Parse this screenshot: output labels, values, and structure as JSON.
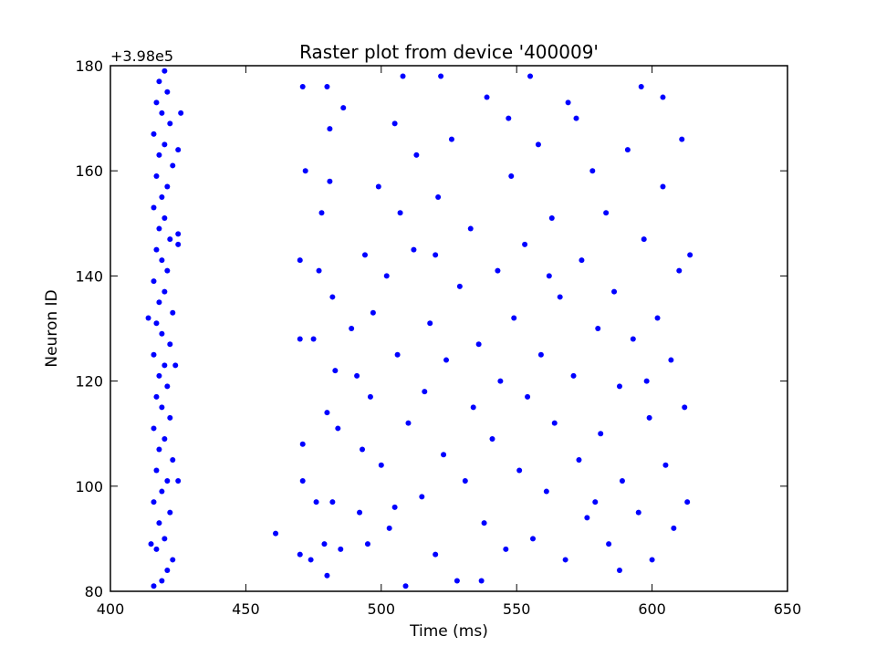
{
  "chart_data": {
    "type": "scatter",
    "title": "Raster plot from device '400009'",
    "xlabel": "Time (ms)",
    "ylabel": "Neuron ID",
    "xlim": [
      400,
      650
    ],
    "ylim": [
      80,
      180
    ],
    "x_ticks": [
      "400",
      "450",
      "500",
      "550",
      "600",
      "650"
    ],
    "y_ticks": [
      "80",
      "100",
      "120",
      "140",
      "160",
      "180"
    ],
    "y_offset_label": "+3.98e5",
    "grid": false,
    "legend": "none",
    "marker_color": "#0000ff",
    "series": [
      {
        "points": [
          [
            416,
            81
          ],
          [
            419,
            82
          ],
          [
            421,
            84
          ],
          [
            423,
            86
          ],
          [
            417,
            88
          ],
          [
            420,
            90
          ],
          [
            418,
            93
          ],
          [
            422,
            95
          ],
          [
            416,
            97
          ],
          [
            419,
            99
          ],
          [
            421,
            101
          ],
          [
            417,
            103
          ],
          [
            423,
            105
          ],
          [
            418,
            107
          ],
          [
            420,
            109
          ],
          [
            416,
            111
          ],
          [
            422,
            113
          ],
          [
            419,
            115
          ],
          [
            417,
            117
          ],
          [
            421,
            119
          ],
          [
            418,
            121
          ],
          [
            420,
            123
          ],
          [
            416,
            125
          ],
          [
            422,
            127
          ],
          [
            419,
            129
          ],
          [
            417,
            131
          ],
          [
            423,
            133
          ],
          [
            418,
            135
          ],
          [
            420,
            137
          ],
          [
            416,
            139
          ],
          [
            421,
            141
          ],
          [
            419,
            143
          ],
          [
            417,
            145
          ],
          [
            422,
            147
          ],
          [
            418,
            149
          ],
          [
            420,
            151
          ],
          [
            416,
            153
          ],
          [
            419,
            155
          ],
          [
            421,
            157
          ],
          [
            417,
            159
          ],
          [
            423,
            161
          ],
          [
            418,
            163
          ],
          [
            420,
            165
          ],
          [
            416,
            167
          ],
          [
            422,
            169
          ],
          [
            419,
            171
          ],
          [
            417,
            173
          ],
          [
            421,
            175
          ],
          [
            418,
            177
          ],
          [
            420,
            179
          ],
          [
            415,
            89
          ],
          [
            425,
            101
          ],
          [
            425,
            148
          ],
          [
            426,
            171
          ],
          [
            425,
            164
          ],
          [
            424,
            123
          ],
          [
            414,
            132
          ],
          [
            425,
            146
          ],
          [
            461,
            91
          ],
          [
            470,
            87
          ],
          [
            470,
            143
          ],
          [
            471,
            108
          ],
          [
            470,
            128
          ],
          [
            471,
            101
          ],
          [
            472,
            160
          ],
          [
            471,
            176
          ],
          [
            474,
            86
          ],
          [
            476,
            97
          ],
          [
            477,
            141
          ],
          [
            479,
            89
          ],
          [
            480,
            114
          ],
          [
            480,
            83
          ],
          [
            480,
            176
          ],
          [
            481,
            168
          ],
          [
            482,
            97
          ],
          [
            481,
            158
          ],
          [
            484,
            111
          ],
          [
            483,
            122
          ],
          [
            482,
            136
          ],
          [
            485,
            88
          ],
          [
            486,
            172
          ],
          [
            489,
            130
          ],
          [
            491,
            121
          ],
          [
            492,
            95
          ],
          [
            493,
            107
          ],
          [
            494,
            144
          ],
          [
            496,
            117
          ],
          [
            497,
            133
          ],
          [
            499,
            157
          ],
          [
            500,
            104
          ],
          [
            502,
            140
          ],
          [
            503,
            92
          ],
          [
            505,
            169
          ],
          [
            506,
            125
          ],
          [
            507,
            152
          ],
          [
            509,
            81
          ],
          [
            510,
            112
          ],
          [
            512,
            145
          ],
          [
            513,
            163
          ],
          [
            515,
            98
          ],
          [
            516,
            118
          ],
          [
            518,
            131
          ],
          [
            520,
            87
          ],
          [
            521,
            155
          ],
          [
            523,
            106
          ],
          [
            524,
            124
          ],
          [
            526,
            166
          ],
          [
            528,
            82
          ],
          [
            529,
            138
          ],
          [
            531,
            101
          ],
          [
            533,
            149
          ],
          [
            534,
            115
          ],
          [
            536,
            127
          ],
          [
            538,
            93
          ],
          [
            539,
            174
          ],
          [
            541,
            109
          ],
          [
            543,
            141
          ],
          [
            544,
            120
          ],
          [
            546,
            88
          ],
          [
            548,
            159
          ],
          [
            549,
            132
          ],
          [
            551,
            103
          ],
          [
            553,
            146
          ],
          [
            554,
            117
          ],
          [
            556,
            90
          ],
          [
            558,
            165
          ],
          [
            559,
            125
          ],
          [
            561,
            99
          ],
          [
            563,
            151
          ],
          [
            564,
            112
          ],
          [
            566,
            136
          ],
          [
            568,
            86
          ],
          [
            569,
            173
          ],
          [
            571,
            121
          ],
          [
            573,
            105
          ],
          [
            574,
            143
          ],
          [
            576,
            94
          ],
          [
            578,
            160
          ],
          [
            580,
            130
          ],
          [
            581,
            110
          ],
          [
            583,
            152
          ],
          [
            584,
            89
          ],
          [
            586,
            137
          ],
          [
            588,
            119
          ],
          [
            589,
            101
          ],
          [
            591,
            164
          ],
          [
            593,
            128
          ],
          [
            595,
            95
          ],
          [
            597,
            147
          ],
          [
            599,
            113
          ],
          [
            600,
            86
          ],
          [
            602,
            132
          ],
          [
            604,
            157
          ],
          [
            605,
            104
          ],
          [
            607,
            124
          ],
          [
            608,
            92
          ],
          [
            610,
            141
          ],
          [
            611,
            166
          ],
          [
            612,
            115
          ],
          [
            613,
            97
          ],
          [
            614,
            144
          ],
          [
            604,
            174
          ],
          [
            596,
            176
          ],
          [
            588,
            84
          ],
          [
            572,
            170
          ],
          [
            555,
            178
          ],
          [
            537,
            82
          ],
          [
            522,
            178
          ],
          [
            508,
            178
          ],
          [
            495,
            89
          ],
          [
            478,
            152
          ],
          [
            475,
            128
          ],
          [
            505,
            96
          ],
          [
            520,
            144
          ],
          [
            547,
            170
          ],
          [
            562,
            140
          ],
          [
            579,
            97
          ],
          [
            598,
            120
          ]
        ]
      }
    ]
  }
}
